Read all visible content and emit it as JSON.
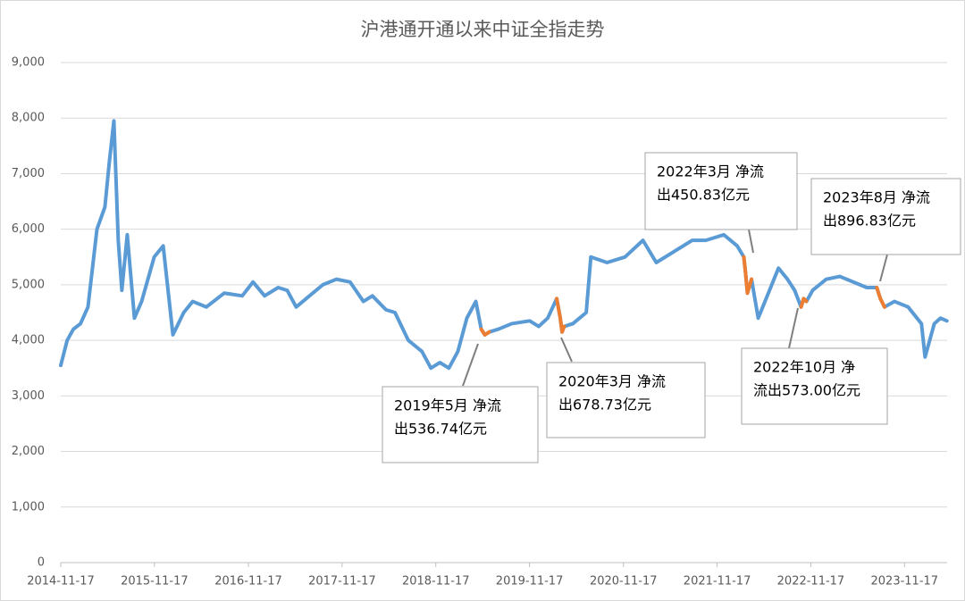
{
  "chart_data": {
    "type": "line",
    "title": "沪港通开通以来中证全指走势",
    "x": [
      "2014-11-17",
      "2014-12-12",
      "2015-01-05",
      "2015-02-02",
      "2015-03-03",
      "2015-04-07",
      "2015-05-08",
      "2015-05-25",
      "2015-06-12",
      "2015-06-29",
      "2015-07-13",
      "2015-08-03",
      "2015-08-31",
      "2015-09-28",
      "2015-11-16",
      "2015-12-21",
      "2016-01-28",
      "2016-03-10",
      "2016-04-14",
      "2016-06-06",
      "2016-08-15",
      "2016-10-24",
      "2016-12-05",
      "2017-01-19",
      "2017-03-13",
      "2017-04-17",
      "2017-05-22",
      "2017-07-13",
      "2017-09-03",
      "2017-10-26",
      "2017-12-18",
      "2018-02-08",
      "2018-03-15",
      "2018-05-07",
      "2018-06-11",
      "2018-08-02",
      "2018-09-24",
      "2018-10-29",
      "2018-12-03",
      "2019-01-07",
      "2019-02-11",
      "2019-03-18",
      "2019-04-22",
      "2019-05-13",
      "2019-05-27",
      "2019-06-13",
      "2019-07-18",
      "2019-09-09",
      "2019-11-18",
      "2019-12-23",
      "2020-01-27",
      "2020-03-02",
      "2020-03-16",
      "2020-03-23",
      "2020-03-31",
      "2020-05-04",
      "2020-06-25",
      "2020-07-13",
      "2020-09-14",
      "2020-11-23",
      "2021-02-01",
      "2021-03-25",
      "2021-06-03",
      "2021-08-12",
      "2021-10-04",
      "2021-12-13",
      "2022-02-03",
      "2022-03-01",
      "2022-03-08",
      "2022-03-15",
      "2022-03-31",
      "2022-04-26",
      "2022-06-09",
      "2022-07-14",
      "2022-08-18",
      "2022-09-15",
      "2022-10-10",
      "2022-10-20",
      "2022-10-31",
      "2022-11-24",
      "2023-01-16",
      "2023-03-10",
      "2023-05-01",
      "2023-06-23",
      "2023-08-01",
      "2023-08-15",
      "2023-08-31",
      "2023-10-09",
      "2023-12-01",
      "2024-01-22",
      "2024-02-05",
      "2024-03-12",
      "2024-04-05",
      "2024-04-30"
    ],
    "series": [
      {
        "color": "#5b9bd5",
        "values": [
          3550,
          4000,
          4200,
          4300,
          4600,
          6000,
          6400,
          7200,
          7950,
          5800,
          4900,
          5900,
          4400,
          4700,
          5500,
          5700,
          4100,
          4500,
          4700,
          4600,
          4850,
          4800,
          5050,
          4800,
          4950,
          4900,
          4600,
          4800,
          5000,
          5100,
          5050,
          4700,
          4800,
          4550,
          4500,
          4000,
          3800,
          3500,
          3600,
          3500,
          3800,
          4400,
          4700,
          4200,
          4100,
          4150,
          4200,
          4300,
          4350,
          4250,
          4400,
          4750,
          4400,
          4150,
          4250,
          4300,
          4500,
          5500,
          5400,
          5500,
          5800,
          5400,
          5600,
          5800,
          5800,
          5900,
          5700,
          5500,
          5200,
          4850,
          5100,
          4400,
          4900,
          5300,
          5100,
          4900,
          4600,
          4750,
          4700,
          4900,
          5100,
          5150,
          5050,
          4950,
          4950,
          4750,
          4600,
          4700,
          4600,
          4300,
          3700,
          4300,
          4400,
          4350
        ]
      },
      {
        "color": "#ed7d31",
        "values": [
          null,
          null,
          null,
          null,
          null,
          null,
          null,
          null,
          null,
          null,
          null,
          null,
          null,
          null,
          null,
          null,
          null,
          null,
          null,
          null,
          null,
          null,
          null,
          null,
          null,
          null,
          null,
          null,
          null,
          null,
          null,
          null,
          null,
          null,
          null,
          null,
          null,
          null,
          null,
          null,
          null,
          null,
          null,
          4200,
          4100,
          4150,
          null,
          null,
          null,
          null,
          null,
          4750,
          4400,
          4150,
          4250,
          null,
          null,
          null,
          null,
          null,
          null,
          null,
          null,
          null,
          null,
          null,
          null,
          5500,
          5200,
          4850,
          5100,
          null,
          null,
          null,
          null,
          null,
          4600,
          4750,
          4700,
          null,
          null,
          null,
          null,
          null,
          4950,
          4750,
          4600,
          null,
          null,
          null,
          null,
          null,
          null,
          null
        ]
      }
    ],
    "xlim": [
      "2014-11-17",
      "2024-05-01"
    ],
    "xticks": [
      "2014-11-17",
      "2015-11-17",
      "2016-11-17",
      "2017-11-17",
      "2018-11-17",
      "2019-11-17",
      "2020-11-17",
      "2021-11-17",
      "2022-11-17",
      "2023-11-17"
    ],
    "ylim": [
      0,
      9000
    ],
    "yticks": [
      0,
      {
        "value": 1000,
        "label": "1,000"
      },
      {
        "value": 2000,
        "label": "2,000"
      },
      {
        "value": 3000,
        "label": "3,000"
      },
      {
        "value": 4000,
        "label": "4,000"
      },
      {
        "value": 5000,
        "label": "5,000"
      },
      {
        "value": 6000,
        "label": "6,000"
      },
      {
        "value": 7000,
        "label": "7,000"
      },
      {
        "value": 8000,
        "label": "8,000"
      },
      {
        "value": 9000,
        "label": "9,000"
      }
    ],
    "grid": true,
    "annotations": [
      {
        "lines": [
          "2019年5月 净流",
          "出536.74亿元"
        ]
      },
      {
        "lines": [
          "2020年3月 净流",
          "出678.73亿元"
        ]
      },
      {
        "lines": [
          "2022年3月 净流",
          "出450.83亿元"
        ]
      },
      {
        "lines": [
          "2022年10月 净",
          "流出573.00亿元"
        ]
      },
      {
        "lines": [
          "2023年8月 净流",
          "出896.83亿元"
        ]
      }
    ]
  }
}
